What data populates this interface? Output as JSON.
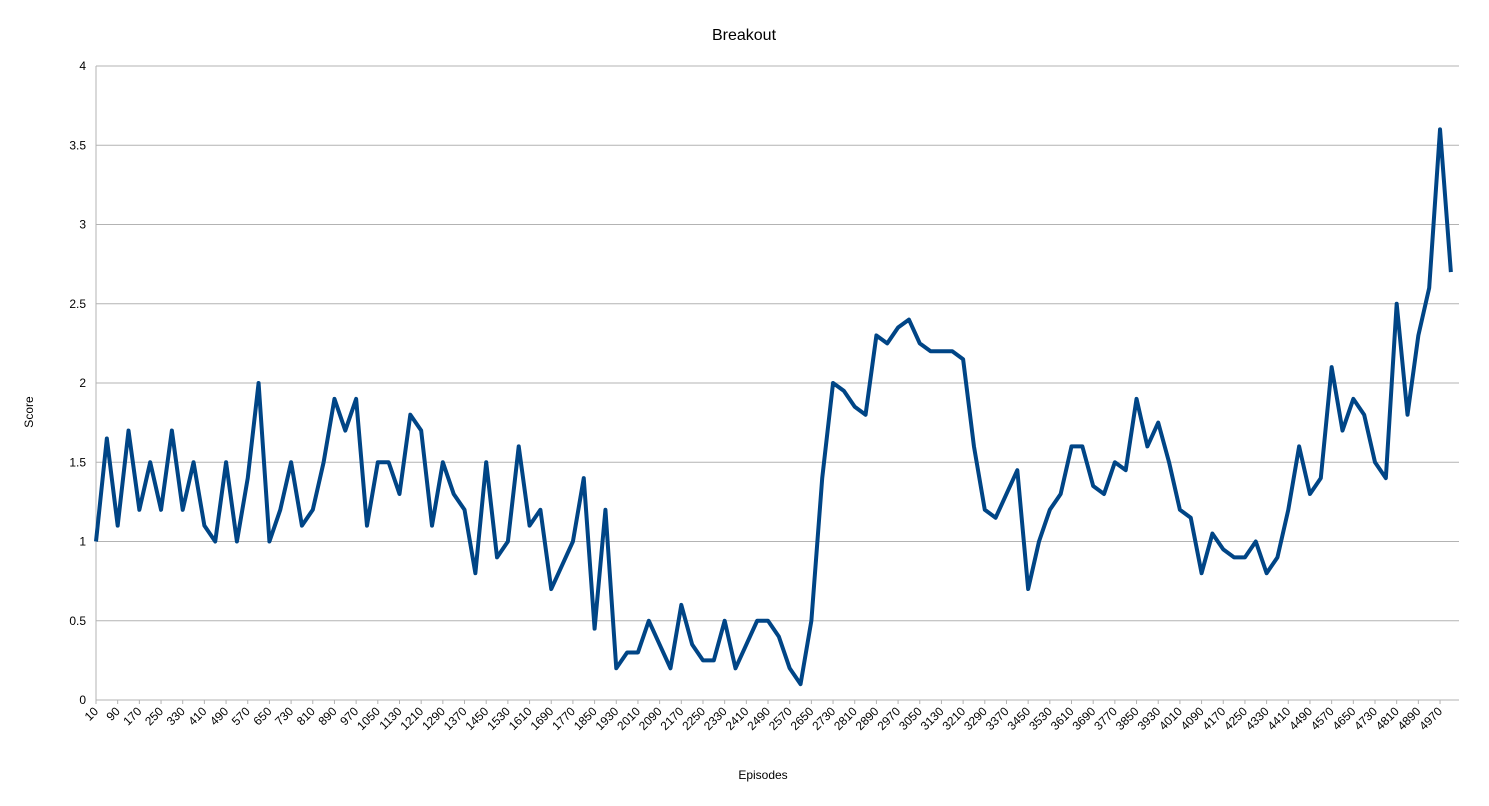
{
  "chart_data": {
    "type": "line",
    "title": "Breakout",
    "x_label": "Episodes",
    "y_label": "Score",
    "x": [
      10,
      50,
      90,
      130,
      170,
      210,
      250,
      290,
      330,
      370,
      410,
      450,
      490,
      530,
      570,
      610,
      650,
      690,
      730,
      770,
      810,
      850,
      890,
      930,
      970,
      1010,
      1050,
      1090,
      1130,
      1170,
      1210,
      1250,
      1290,
      1330,
      1370,
      1410,
      1450,
      1490,
      1530,
      1570,
      1610,
      1650,
      1690,
      1730,
      1770,
      1810,
      1850,
      1890,
      1930,
      1970,
      2010,
      2050,
      2090,
      2130,
      2170,
      2210,
      2250,
      2290,
      2330,
      2370,
      2410,
      2450,
      2490,
      2530,
      2570,
      2610,
      2650,
      2690,
      2730,
      2770,
      2810,
      2850,
      2890,
      2930,
      2970,
      3010,
      3050,
      3090,
      3130,
      3170,
      3210,
      3250,
      3290,
      3330,
      3370,
      3410,
      3450,
      3490,
      3530,
      3570,
      3610,
      3650,
      3690,
      3730,
      3770,
      3810,
      3850,
      3890,
      3930,
      3970,
      4010,
      4050,
      4090,
      4130,
      4170,
      4210,
      4250,
      4290,
      4330,
      4370,
      4410,
      4450,
      4490,
      4530,
      4570,
      4610,
      4650,
      4690,
      4730,
      4770,
      4810,
      4850,
      4890,
      4930,
      4970,
      5010
    ],
    "series": [
      {
        "color": "#004586",
        "values": [
          1.0,
          1.65,
          1.1,
          1.7,
          1.2,
          1.5,
          1.2,
          1.7,
          1.2,
          1.5,
          1.1,
          1.0,
          1.5,
          1.0,
          1.4,
          2.0,
          1.0,
          1.2,
          1.5,
          1.1,
          1.2,
          1.5,
          1.9,
          1.7,
          1.9,
          1.1,
          1.5,
          1.5,
          1.3,
          1.8,
          1.7,
          1.1,
          1.5,
          1.3,
          1.2,
          0.8,
          1.5,
          0.9,
          1.0,
          1.6,
          1.1,
          1.2,
          0.7,
          0.85,
          1.0,
          1.4,
          0.45,
          1.2,
          0.2,
          0.3,
          0.3,
          0.5,
          0.35,
          0.2,
          0.6,
          0.35,
          0.25,
          0.25,
          0.5,
          0.2,
          0.35,
          0.5,
          0.5,
          0.4,
          0.2,
          0.1,
          0.5,
          1.4,
          2.0,
          1.95,
          1.85,
          1.8,
          2.3,
          2.25,
          2.35,
          2.4,
          2.25,
          2.2,
          2.2,
          2.2,
          2.15,
          1.6,
          1.2,
          1.15,
          1.3,
          1.45,
          0.7,
          1.0,
          1.2,
          1.3,
          1.6,
          1.6,
          1.35,
          1.3,
          1.5,
          1.45,
          1.9,
          1.6,
          1.75,
          1.5,
          1.2,
          1.15,
          0.8,
          1.05,
          0.95,
          0.9,
          0.9,
          1.0,
          0.8,
          0.9,
          1.2,
          1.6,
          1.3,
          1.4,
          2.1,
          1.7,
          1.9,
          1.8,
          1.5,
          1.4,
          2.5,
          1.8,
          2.3,
          2.6,
          3.6,
          2.7
        ]
      }
    ],
    "xlim": [
      10,
      5040
    ],
    "xticks": [
      10,
      90,
      170,
      250,
      330,
      410,
      490,
      570,
      650,
      730,
      810,
      890,
      970,
      1050,
      1130,
      1210,
      1290,
      1370,
      1450,
      1530,
      1610,
      1690,
      1770,
      1850,
      1930,
      2010,
      2090,
      2170,
      2250,
      2330,
      2410,
      2490,
      2570,
      2650,
      2730,
      2810,
      2890,
      2970,
      3050,
      3130,
      3210,
      3290,
      3370,
      3450,
      3530,
      3610,
      3690,
      3770,
      3850,
      3930,
      4010,
      4090,
      4170,
      4250,
      4330,
      4410,
      4490,
      4570,
      4650,
      4730,
      4810,
      4890,
      4970
    ],
    "ylim": [
      0,
      4
    ],
    "yticks": [
      0,
      0.5,
      1,
      1.5,
      2,
      2.5,
      3,
      3.5,
      4
    ],
    "grid": true
  }
}
